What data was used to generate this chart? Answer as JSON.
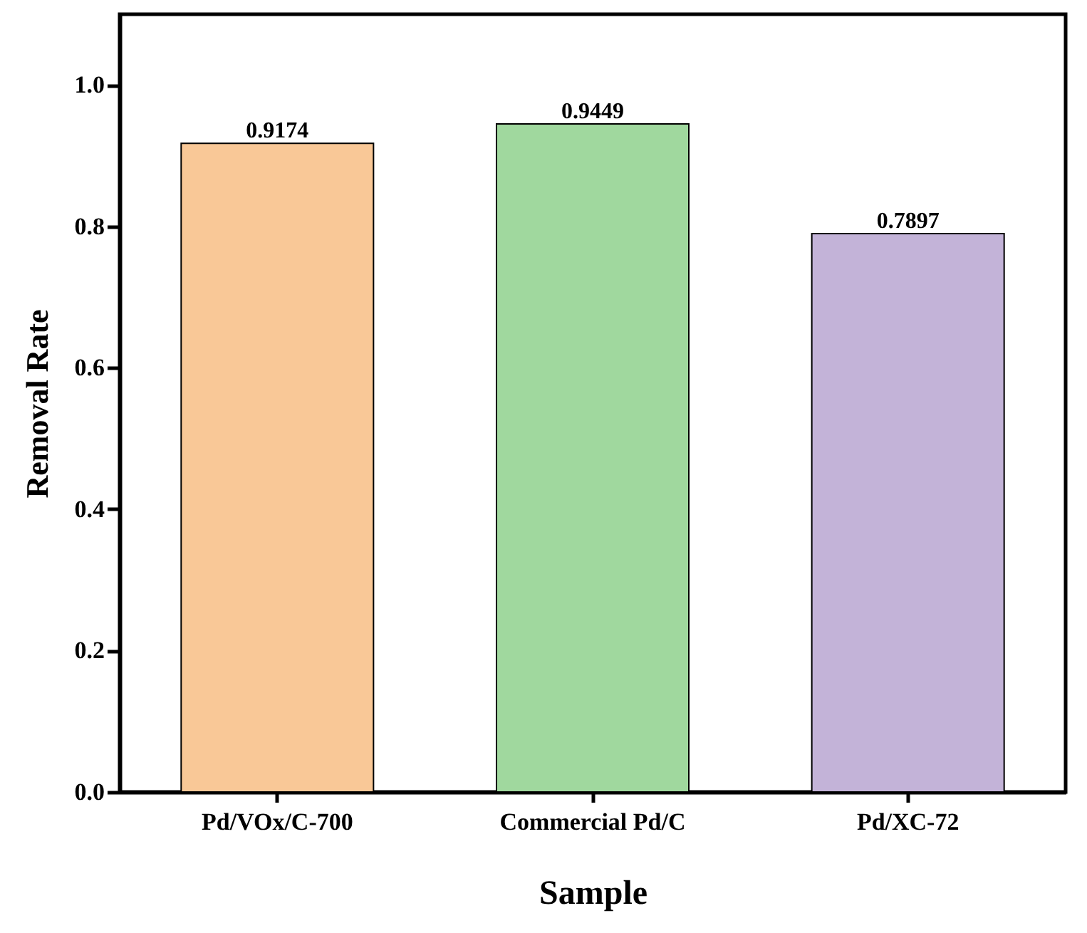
{
  "chart_data": {
    "type": "bar",
    "xlabel": "Sample",
    "ylabel": "Removal Rate",
    "categories": [
      "Pd/VOx/C-700",
      "Commercial Pd/C",
      "Pd/XC-72"
    ],
    "values": [
      0.9174,
      0.9449,
      0.7897
    ],
    "colors": [
      "#f9c897",
      "#a0d89e",
      "#c3b3d8"
    ],
    "ylim": [
      0,
      1.1
    ],
    "yticks": [
      {
        "value": 0,
        "label": "0.0"
      },
      {
        "value": 0.2,
        "label": "0.2"
      },
      {
        "value": 0.4,
        "label": "0.4"
      },
      {
        "value": 0.6,
        "label": "0.6"
      },
      {
        "value": 0.8,
        "label": "0.8"
      },
      {
        "value": 1.0,
        "label": "1.0"
      }
    ],
    "data_labels": true,
    "grid": false
  }
}
